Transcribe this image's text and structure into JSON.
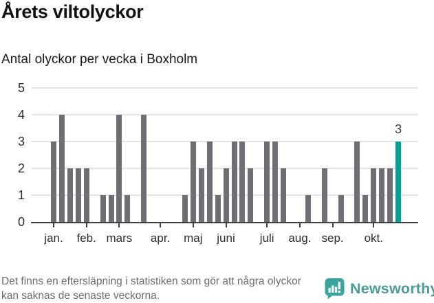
{
  "header": {
    "title": "Årets viltolyckor",
    "subtitle": "Antal olyckor per vecka i Boxholm"
  },
  "chart_data": {
    "type": "bar",
    "title": "Årets viltolyckor",
    "subtitle": "Antal olyckor per vecka i Boxholm",
    "x_unit": "vecka",
    "weeks": 43,
    "values": [
      3,
      4,
      2,
      2,
      2,
      0,
      1,
      1,
      4,
      1,
      0,
      4,
      0,
      0,
      0,
      0,
      1,
      3,
      2,
      3,
      1,
      2,
      3,
      3,
      2,
      0,
      3,
      3,
      2,
      0,
      0,
      1,
      0,
      2,
      0,
      1,
      0,
      3,
      1,
      2,
      2,
      2,
      3
    ],
    "highlight_index": 42,
    "highlight_label": "3",
    "y_ticks": [
      0,
      1,
      2,
      3,
      4,
      5
    ],
    "ylim": [
      0,
      5
    ],
    "month_labels": [
      "jan.",
      "feb.",
      "mars",
      "apr.",
      "maj",
      "juni",
      "juli",
      "aug.",
      "sep.",
      "okt."
    ],
    "month_tick_slots": [
      0,
      4,
      8,
      13,
      17,
      21,
      26,
      30,
      34,
      39
    ],
    "bar_color": "#6e6e74",
    "highlight_color": "#00a19a",
    "grid": true,
    "legend": "none"
  },
  "footer": {
    "note": "Det finns en eftersläpning i statistiken som gör att några olyckor kan saknas de senaste veckorna.",
    "brand": "Newsworthy"
  }
}
